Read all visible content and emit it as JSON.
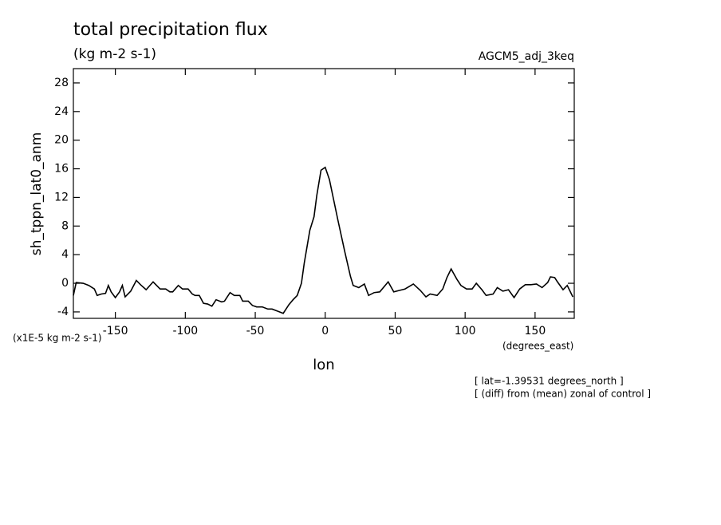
{
  "chart_data": {
    "type": "line",
    "title": "total precipitation flux",
    "subtitle": "(kg m-2 s-1)",
    "dataset_label": "AGCM5_adj_3keq",
    "y_label": "sh_tppn_lat0_anm",
    "y_units": "(x1E-5 kg m-2 s-1)",
    "x_label": "lon",
    "x_units": "(degrees_east)",
    "annotations": [
      "[ lat=-1.39531 degrees_north ]",
      "[ (diff) from (mean) zonal of control ]"
    ],
    "color": "#000000",
    "xlim": [
      -180,
      178
    ],
    "ylim": [
      -4.9,
      30
    ],
    "xticks": [
      -150,
      -100,
      -50,
      0,
      50,
      100,
      150
    ],
    "yticks": [
      -4,
      0,
      4,
      8,
      12,
      16,
      20,
      24,
      28
    ],
    "x": [
      -180,
      -178,
      -173,
      -169,
      -165,
      -163,
      -160,
      -157,
      -155,
      -153,
      -150,
      -147,
      -145,
      -143,
      -139,
      -135,
      -132,
      -128,
      -123,
      -118,
      -114,
      -111,
      -109,
      -105,
      -102,
      -98,
      -95,
      -93,
      -90,
      -87,
      -84,
      -81,
      -78,
      -74,
      -72,
      -68,
      -65,
      -61,
      -59,
      -55,
      -52,
      -49,
      -45,
      -41,
      -38,
      -34,
      -30,
      -26,
      -23,
      -20,
      -17,
      -15,
      -11,
      -8,
      -6,
      -3,
      0,
      3,
      6,
      9,
      14,
      18,
      20,
      24,
      28,
      31,
      35,
      39,
      45,
      49,
      53,
      57,
      63,
      68,
      72,
      75,
      80,
      84,
      87,
      90,
      94,
      97,
      101,
      105,
      108,
      112,
      115,
      120,
      123,
      127,
      131,
      135,
      139,
      143,
      147,
      151,
      155,
      159,
      161,
      164,
      166,
      170,
      173,
      177
    ],
    "values": [
      -1.7,
      0.1,
      0,
      -0.3,
      -0.8,
      -1.7,
      -1.5,
      -1.4,
      -0.3,
      -1.2,
      -2.0,
      -1.2,
      -0.3,
      -1.9,
      -1.1,
      0.4,
      -0.2,
      -0.9,
      0.2,
      -0.8,
      -0.8,
      -1.2,
      -1.2,
      -0.3,
      -0.8,
      -0.8,
      -1.5,
      -1.7,
      -1.7,
      -2.8,
      -2.9,
      -3.2,
      -2.3,
      -2.6,
      -2.5,
      -1.3,
      -1.7,
      -1.7,
      -2.5,
      -2.5,
      -3.1,
      -3.3,
      -3.3,
      -3.6,
      -3.6,
      -3.9,
      -4.2,
      -3.0,
      -2.3,
      -1.7,
      0,
      2.8,
      7.4,
      9.3,
      12.3,
      15.8,
      16.2,
      14.5,
      11.7,
      8.9,
      4.4,
      1.0,
      -0.3,
      -0.6,
      -0.1,
      -1.7,
      -1.3,
      -1.2,
      0.2,
      -1.2,
      -1.0,
      -0.8,
      -0.1,
      -1.0,
      -1.9,
      -1.5,
      -1.7,
      -0.8,
      0.8,
      2.0,
      0.6,
      -0.3,
      -0.8,
      -0.8,
      0,
      -0.9,
      -1.7,
      -1.5,
      -0.6,
      -1.1,
      -0.9,
      -2.0,
      -0.8,
      -0.2,
      -0.2,
      -0.1,
      -0.6,
      0.1,
      0.9,
      0.8,
      0.2,
      -0.9,
      -0.3,
      -1.9
    ]
  }
}
